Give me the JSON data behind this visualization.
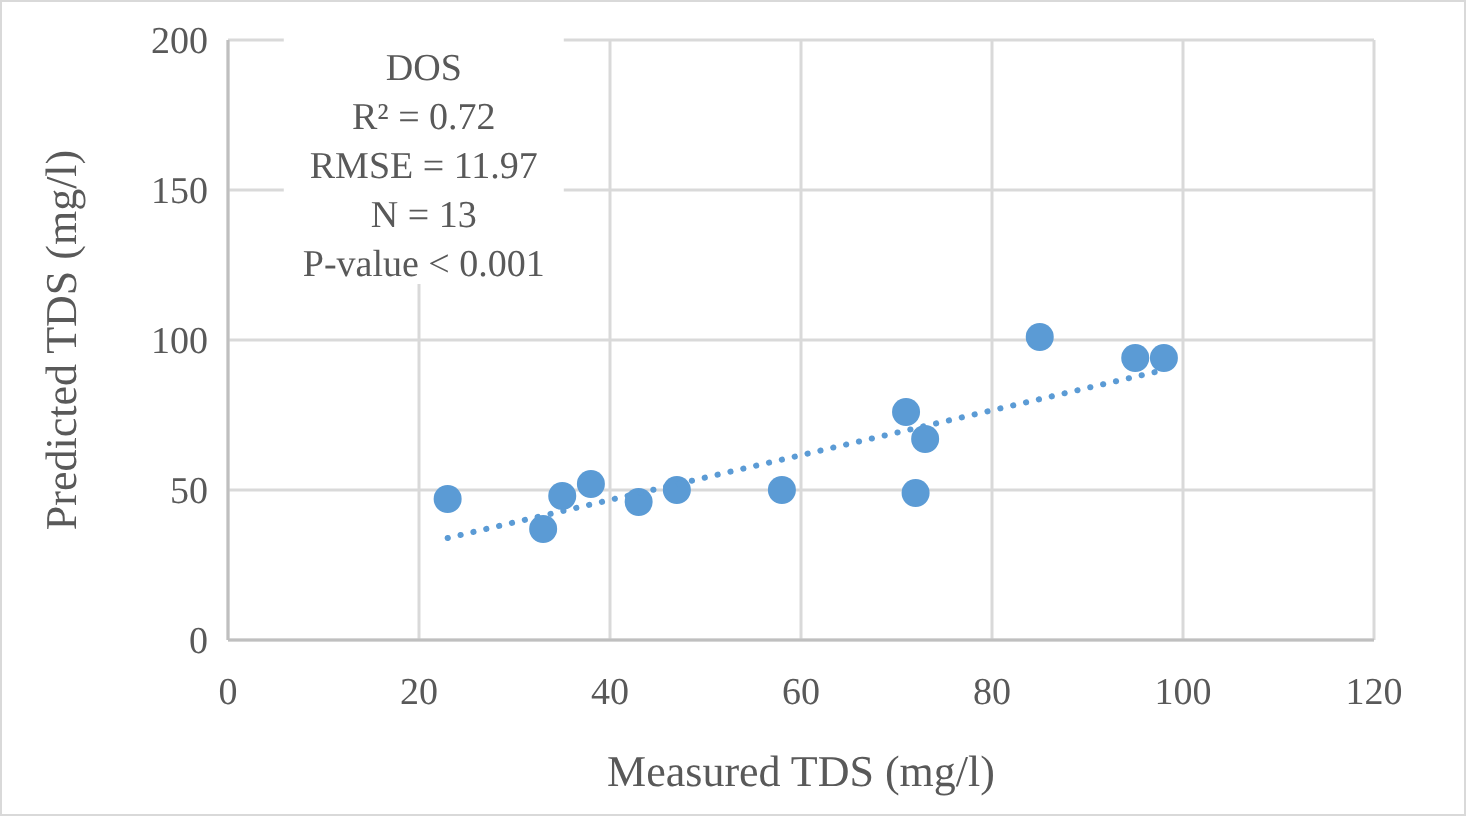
{
  "chart_data": {
    "type": "scatter",
    "xlabel": "Measured TDS (mg/l)",
    "ylabel": "Predicted TDS (mg/l)",
    "xlim": [
      0,
      120
    ],
    "xticks": [
      0,
      20,
      40,
      60,
      80,
      100,
      120
    ],
    "ylim": [
      0,
      200
    ],
    "yticks": [
      0,
      50,
      100,
      150,
      200
    ],
    "grid": true,
    "annotations": [
      "DOS",
      "R² = 0.72",
      "RMSE = 11.97",
      "N = 13",
      "P-value < 0.001"
    ],
    "series": [
      {
        "marker": "circle",
        "color": "#5b9bd5",
        "x": [
          23,
          33,
          35,
          38,
          43,
          47,
          58,
          71,
          72,
          73,
          85,
          95,
          98
        ],
        "values": [
          47,
          37,
          48,
          52,
          46,
          50,
          50,
          76,
          49,
          67,
          101,
          94,
          94
        ]
      },
      {
        "type": "line",
        "color": "#5b9bd5",
        "line_style": "dotted",
        "x": [
          23,
          98
        ],
        "values": [
          34,
          90
        ]
      }
    ]
  }
}
